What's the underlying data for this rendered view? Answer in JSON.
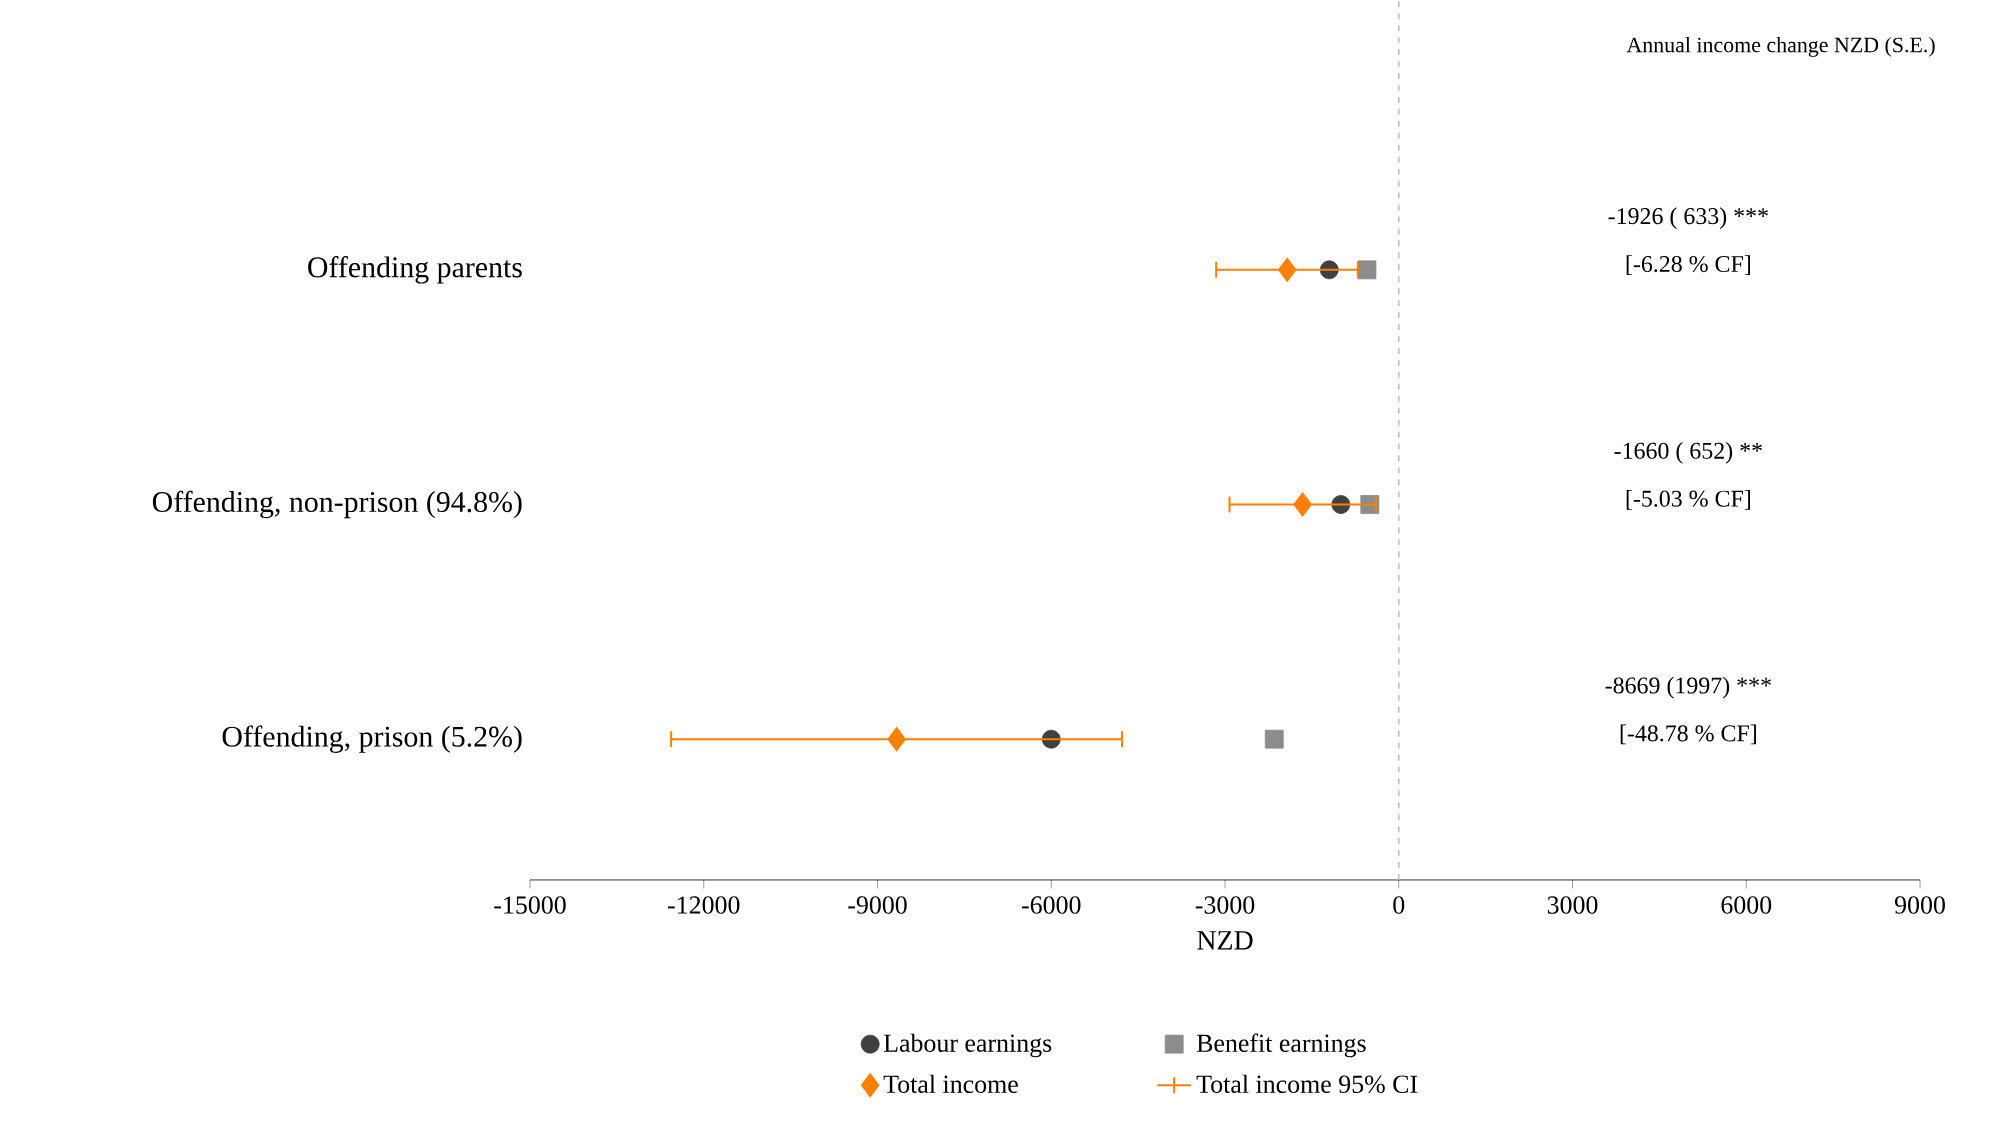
{
  "chart_data": {
    "type": "scatter",
    "orientation": "horizontal",
    "xlabel": "NZD",
    "categories": [
      "Offending parents",
      "Offending, non-prison (94.8%)",
      "Offending, prison (5.2%)"
    ],
    "series": [
      {
        "name": "Labour earnings",
        "color": "#404040",
        "marker": "circle",
        "values": [
          -1200,
          -1000,
          -6000
        ]
      },
      {
        "name": "Benefit earnings",
        "color": "#8c8c8c",
        "marker": "square",
        "values": [
          -550,
          -500,
          -2150
        ]
      },
      {
        "name": "Total income",
        "color": "#ff8000",
        "marker": "diamond",
        "values": [
          -1926,
          -1660,
          -8669
        ],
        "errors": [
          [
            -3170,
            -690
          ],
          [
            -2940,
            -380
          ],
          [
            -12580,
            -4760
          ]
        ]
      }
    ],
    "xlim": [
      -15000,
      9000
    ],
    "xticks": [
      -15000,
      -12000,
      -9000,
      -6000,
      -3000,
      0,
      3000,
      6000,
      9000
    ],
    "ref_lines": [
      {
        "axis": "x",
        "value": 0,
        "color": "#bfbfbf",
        "line_style": "dashed"
      }
    ],
    "legend": "bottom",
    "annotations": [
      "Annual income change NZD (S.E.)",
      "Total income 95% CI",
      "-1926 ( 633) ***",
      "[-6.28 % CF]",
      "-1660 ( 652) **",
      "[-5.03 % CF]",
      "-8669 (1997) ***",
      "[-48.78 % CF]"
    ]
  }
}
